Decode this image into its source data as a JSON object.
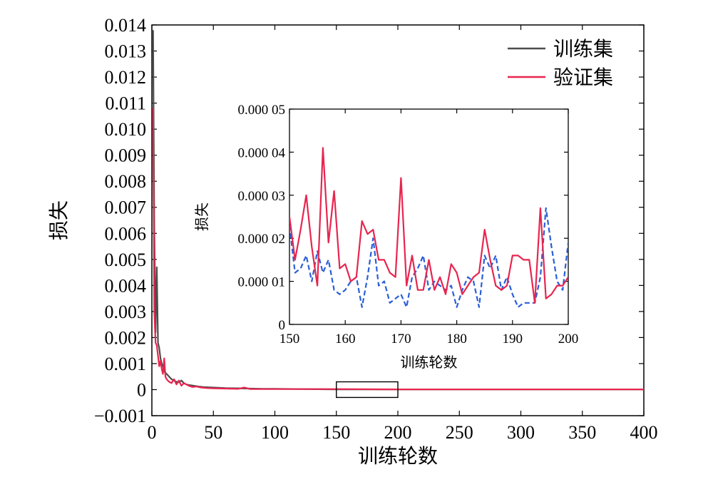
{
  "colors": {
    "train": "#4d4d4d",
    "val": "#e8254f",
    "inset_train": "#2a5fd8",
    "axis": "#000000"
  },
  "chart_data": [
    {
      "type": "line",
      "title": "",
      "xlabel": "训练轮数",
      "ylabel": "损失",
      "xlim": [
        0,
        400
      ],
      "ylim": [
        -0.001,
        0.014
      ],
      "xticks": [
        0,
        50,
        100,
        150,
        200,
        250,
        300,
        350,
        400
      ],
      "xtick_labels": [
        "0",
        "50",
        "100",
        "150",
        "200",
        "250",
        "300",
        "350",
        "400"
      ],
      "yticks": [
        -0.001,
        0,
        0.001,
        0.002,
        0.003,
        0.004,
        0.005,
        0.006,
        0.007,
        0.008,
        0.009,
        0.01,
        0.011,
        0.012,
        0.013,
        0.014
      ],
      "ytick_labels": [
        "−0.001",
        "0",
        "0.001",
        "0.002",
        "0.003",
        "0.004",
        "0.005",
        "0.006",
        "0.007",
        "0.008",
        "0.009",
        "0.010",
        "0.011",
        "0.012",
        "0.013",
        "0.014"
      ],
      "legend": {
        "placement": "top-right",
        "entries": [
          "训练集",
          "验证集"
        ]
      },
      "grid": false,
      "zoom_box": {
        "x": [
          150,
          200
        ],
        "y": [
          -0.0003,
          0.0003
        ]
      },
      "series": [
        {
          "name": "训练集",
          "x": [
            1,
            2,
            3,
            4,
            5,
            6,
            7,
            8,
            9,
            10,
            12,
            14,
            16,
            18,
            20,
            22,
            24,
            26,
            28,
            30,
            34,
            38,
            42,
            46,
            50,
            60,
            70,
            80,
            90,
            100,
            120,
            150,
            200,
            250,
            300,
            350,
            400
          ],
          "y": [
            0.0138,
            0.0062,
            0.0022,
            0.0047,
            0.0018,
            0.0016,
            0.0012,
            0.001,
            0.0009,
            0.0007,
            0.0006,
            0.0005,
            0.0004,
            0.00035,
            0.0003,
            0.00028,
            0.00035,
            0.00025,
            0.0002,
            0.00018,
            0.00015,
            0.00012,
            0.0001,
            9e-05,
            8e-05,
            6e-05,
            5e-05,
            4e-05,
            3e-05,
            3e-05,
            2e-05,
            1e-05,
            1e-05,
            1e-05,
            1e-05,
            1e-05,
            1e-05
          ]
        },
        {
          "name": "验证集",
          "x": [
            1,
            2,
            3,
            4,
            5,
            6,
            7,
            8,
            9,
            10,
            11,
            12,
            14,
            16,
            18,
            20,
            22,
            24,
            26,
            28,
            30,
            33,
            36,
            40,
            45,
            50,
            60,
            70,
            75,
            80,
            90,
            100,
            120,
            150,
            200,
            250,
            300,
            350,
            400
          ],
          "y": [
            0.0108,
            0.003,
            0.0018,
            0.0017,
            0.0013,
            0.0009,
            0.0011,
            0.0008,
            0.0006,
            0.0012,
            0.0005,
            0.0004,
            0.0003,
            0.00025,
            0.0004,
            0.0002,
            0.00035,
            0.00015,
            0.00025,
            0.0002,
            0.00015,
            0.0001,
            0.00012,
            8e-05,
            6e-05,
            5e-05,
            4e-05,
            3e-05,
            8e-05,
            2e-05,
            2e-05,
            2e-05,
            2e-05,
            2e-05,
            1e-05,
            1e-05,
            1e-05,
            1e-05,
            1e-05
          ]
        }
      ]
    },
    {
      "type": "line",
      "title": "",
      "xlabel": "训练轮数",
      "ylabel": "损失",
      "xlim": [
        150,
        200
      ],
      "ylim": [
        0,
        5e-05
      ],
      "xticks": [
        150,
        160,
        170,
        180,
        190,
        200
      ],
      "xtick_labels": [
        "150",
        "160",
        "170",
        "180",
        "190",
        "200"
      ],
      "yticks": [
        0,
        1e-05,
        2e-05,
        3e-05,
        4e-05,
        5e-05
      ],
      "ytick_labels": [
        "0",
        "0.000 01",
        "0.000 02",
        "0.000 03",
        "0.000 04",
        "0.000 05"
      ],
      "grid": false,
      "series": [
        {
          "name": "训练集",
          "x": [
            150,
            151,
            152,
            153,
            154,
            155,
            156,
            157,
            158,
            159,
            160,
            161,
            162,
            163,
            164,
            165,
            166,
            167,
            168,
            169,
            170,
            171,
            172,
            173,
            174,
            175,
            176,
            177,
            178,
            179,
            180,
            181,
            182,
            183,
            184,
            185,
            186,
            187,
            188,
            189,
            190,
            191,
            192,
            193,
            194,
            195,
            196,
            197,
            198,
            199,
            200
          ],
          "y": [
            2.3e-05,
            1.2e-05,
            1.3e-05,
            1.6e-05,
            1e-05,
            1.7e-05,
            1.2e-05,
            1.5e-05,
            8e-06,
            7e-06,
            8e-06,
            1e-05,
            1.1e-05,
            4e-06,
            1.1e-05,
            2e-05,
            9e-06,
            1e-05,
            5e-06,
            6e-06,
            7e-06,
            4e-06,
            1.1e-05,
            1.3e-05,
            1.6e-05,
            8e-06,
            1e-05,
            9e-06,
            8e-06,
            9e-06,
            4e-06,
            8e-06,
            1.1e-05,
            1e-05,
            4e-06,
            1.6e-05,
            1.3e-05,
            1.6e-05,
            8e-06,
            1.1e-05,
            7e-06,
            4e-06,
            5e-06,
            5e-06,
            5e-06,
            1.1e-05,
            2.7e-05,
            1.8e-05,
            1e-05,
            8e-06,
            1.9e-05
          ]
        },
        {
          "name": "验证集",
          "x": [
            150,
            151,
            152,
            153,
            154,
            155,
            156,
            157,
            158,
            159,
            160,
            161,
            162,
            163,
            164,
            165,
            166,
            167,
            168,
            169,
            170,
            171,
            172,
            173,
            174,
            175,
            176,
            177,
            178,
            179,
            180,
            181,
            182,
            183,
            184,
            185,
            186,
            187,
            188,
            189,
            190,
            191,
            192,
            193,
            194,
            195,
            196,
            197,
            198,
            199,
            200
          ],
          "y": [
            2.5e-05,
            1.5e-05,
            2.2e-05,
            3e-05,
            1.8e-05,
            9e-06,
            4.1e-05,
            1.9e-05,
            3.1e-05,
            1.3e-05,
            1.4e-05,
            1e-05,
            1.1e-05,
            2.4e-05,
            2.1e-05,
            2.2e-05,
            1.5e-05,
            1.5e-05,
            1.2e-05,
            1.1e-05,
            3.4e-05,
            9e-06,
            1.6e-05,
            8e-06,
            8e-06,
            1.5e-05,
            8e-06,
            1.1e-05,
            7e-06,
            1.4e-05,
            1.2e-05,
            7e-06,
            9e-06,
            1.1e-05,
            1.2e-05,
            2.2e-05,
            1.5e-05,
            9e-06,
            8e-06,
            9e-06,
            1.6e-05,
            1.6e-05,
            1.5e-05,
            1.5e-05,
            5e-06,
            2.7e-05,
            6e-06,
            7e-06,
            9e-06,
            9e-06,
            1.1e-05
          ]
        }
      ]
    }
  ]
}
